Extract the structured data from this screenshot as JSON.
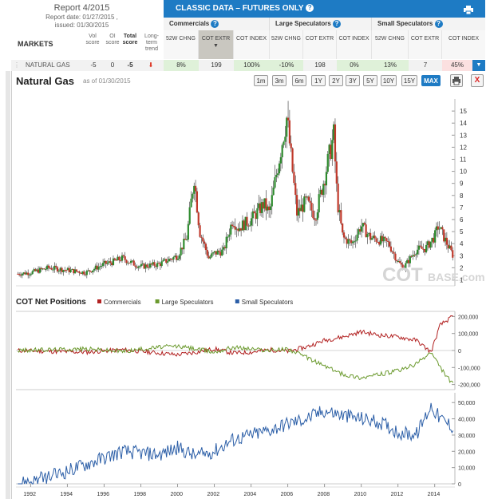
{
  "report": {
    "title": "Report 4/2015",
    "report_date": "Report date: 01/27/2015 ,",
    "issued": "issued: 01/30/2015"
  },
  "markets_header": {
    "markets": "MARKETS",
    "vol_score": "Vol score",
    "oi_score": "OI score",
    "total_score": "Total score",
    "long_term_trend": "Long-term trend"
  },
  "classic": {
    "title": "CLASSIC DATA – FUTURES ONLY",
    "groups": [
      "Commercials",
      "Large Speculators",
      "Small Speculators"
    ],
    "columns": [
      "52W CHNG",
      "COT EXTR",
      "COT INDEX",
      "52W CHNG",
      "COT EXTR",
      "COT INDEX",
      "52W CHNG",
      "COT EXTR",
      "COT INDEX"
    ]
  },
  "row": {
    "market": "NATURAL GAS",
    "vol": "-5",
    "oi": "0",
    "total": "-5",
    "values": [
      "8%",
      "199",
      "100%",
      "-10%",
      "198",
      "0%",
      "13%",
      "7",
      "45%"
    ]
  },
  "chart": {
    "title": "Natural Gas",
    "date": "as of 01/30/2015",
    "ranges": [
      "1m",
      "3m",
      "6m",
      "1Y",
      "2Y",
      "3Y",
      "5Y",
      "10Y",
      "15Y",
      "MAX"
    ],
    "active_range": "MAX",
    "watermark_a": "COT",
    "watermark_b": "BASE.com"
  },
  "chart_data": [
    {
      "type": "candlestick",
      "title": "Natural Gas",
      "y_ticks": [
        1,
        2,
        3,
        4,
        5,
        6,
        7,
        8,
        9,
        10,
        11,
        12,
        13,
        14,
        15
      ],
      "ylim": [
        0.5,
        16
      ],
      "x_range": [
        1991.2,
        2015.1
      ],
      "x": [
        1991.3,
        1992,
        1993,
        1994,
        1995,
        1996,
        1996.5,
        1997,
        1997.5,
        1998,
        1999,
        2000,
        2000.5,
        2000.9,
        2001.2,
        2001.7,
        2002,
        2002.5,
        2003,
        2003.3,
        2004,
        2004.7,
        2005,
        2005.7,
        2005.95,
        2006.5,
        2007,
        2007.5,
        2008,
        2008.5,
        2008.7,
        2009,
        2009.5,
        2010,
        2010.5,
        2011,
        2011.5,
        2012,
        2012.3,
        2013,
        2013.5,
        2014,
        2014.2,
        2014.6,
        2015.0
      ],
      "close": [
        1.5,
        1.6,
        2.0,
        1.8,
        1.6,
        2.3,
        2.5,
        2.8,
        2.4,
        2.1,
        2.3,
        3.0,
        4.5,
        9.5,
        5.0,
        2.8,
        3.2,
        3.4,
        6.0,
        5.3,
        6.0,
        7.3,
        6.5,
        12.5,
        14.5,
        6.5,
        7.5,
        6.3,
        9.5,
        13.0,
        7.5,
        4.5,
        4.0,
        5.5,
        4.5,
        4.3,
        4.0,
        2.5,
        2.0,
        3.5,
        3.6,
        4.6,
        5.5,
        4.2,
        3.0
      ],
      "series": [
        {
          "name": "Natural Gas"
        }
      ]
    },
    {
      "type": "line",
      "title": "COT Net Positions",
      "legend": [
        "Commercials",
        "Large Speculators",
        "Small Speculators"
      ],
      "colors": [
        "#b22222",
        "#6b9a2e",
        "#2b5ea7"
      ],
      "y_ticks_top": [
        "200,000",
        "100,000",
        "0",
        "-100,000",
        "-200,000"
      ],
      "y_ticks_bottom": [
        "50,000",
        "40,000",
        "30,000",
        "20,000",
        "10,000",
        "0"
      ],
      "x_ticks": [
        "1992",
        "1994",
        "1996",
        "1998",
        "2000",
        "2002",
        "2004",
        "2006",
        "2008",
        "2010",
        "2012",
        "2014"
      ],
      "x": [
        1991.3,
        1993,
        1995,
        1997,
        1999,
        2000,
        2001,
        2002,
        2003,
        2004,
        2005,
        2006,
        2007,
        2008,
        2009,
        2010,
        2011,
        2012,
        2013,
        2013.8,
        2014.3,
        2015.0
      ],
      "series": [
        {
          "name": "Commercials",
          "values": [
            0,
            -5000,
            -10000,
            5000,
            -15000,
            -25000,
            -10000,
            10000,
            -15000,
            -10000,
            5000,
            -5000,
            20000,
            60000,
            80000,
            110000,
            90000,
            80000,
            60000,
            -10000,
            150000,
            200000
          ]
        },
        {
          "name": "Large Speculators",
          "values": [
            0,
            5000,
            10000,
            -5000,
            20000,
            25000,
            10000,
            -10000,
            20000,
            10000,
            0,
            10000,
            -40000,
            -90000,
            -140000,
            -160000,
            -140000,
            -120000,
            -80000,
            -10000,
            -100000,
            -200000
          ]
        },
        {
          "name": "Small Speculators",
          "values": [
            0,
            4000,
            12000,
            20000,
            18000,
            22000,
            17000,
            20000,
            27000,
            30000,
            33000,
            37000,
            40000,
            45000,
            42000,
            40000,
            38000,
            32000,
            30000,
            48000,
            40000,
            35000
          ]
        }
      ]
    }
  ]
}
